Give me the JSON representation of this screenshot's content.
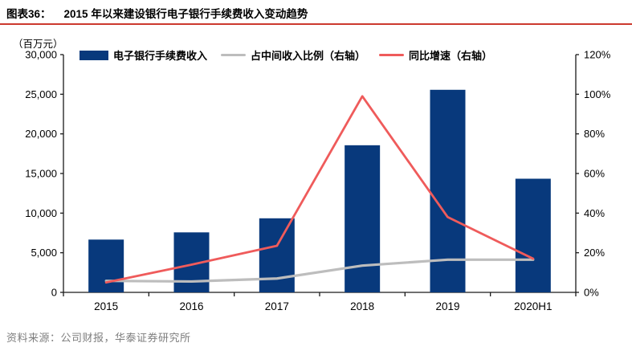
{
  "header": {
    "figure_label": "图表36：",
    "title": "2015 年以来建设银行电子银行手续费收入变动趋势"
  },
  "footer": {
    "source": "资料来源：公司财报，华泰证券研究所"
  },
  "colors": {
    "bar_blue": "#08397C",
    "line_gray": "#BDBDBD",
    "line_red": "#EF5B5B",
    "divider_red": "#CC392E",
    "axis_black": "#1a1a1a",
    "footer_gray": "#7e7e7e"
  },
  "chart_data": {
    "type": "bar",
    "subtype": "bar-line-combo",
    "title": "2015 年以来建设银行电子银行手续费收入变动趋势",
    "unit_label": "（百万元）",
    "categories": [
      "2015",
      "2016",
      "2017",
      "2018",
      "2019",
      "2020H1"
    ],
    "series": [
      {
        "name": "电子银行手续费收入",
        "type": "bar",
        "axis": "left",
        "color": "#08397C",
        "values": [
          6660,
          7570,
          9345,
          18563,
          25561,
          14341
        ]
      },
      {
        "name": "占中间收入比例（右轴）",
        "type": "line",
        "axis": "right",
        "color": "#BDBDBD",
        "values": [
          5.8,
          5.5,
          7.0,
          13.5,
          16.5,
          16.5
        ]
      },
      {
        "name": "同比增速（右轴）",
        "type": "line",
        "axis": "right",
        "color": "#EF5B5B",
        "values": [
          5.0,
          14.0,
          23.5,
          99.0,
          38.0,
          17.0
        ]
      }
    ],
    "left_axis": {
      "min": 0,
      "max": 30000,
      "step": 5000,
      "tick_labels": [
        "0",
        "5,000",
        "10,000",
        "15,000",
        "20,000",
        "25,000",
        "30,000"
      ]
    },
    "right_axis": {
      "min": 0,
      "max": 120,
      "step": 20,
      "tick_labels": [
        "0%",
        "20%",
        "40%",
        "60%",
        "80%",
        "100%",
        "120%"
      ]
    },
    "grid": "off",
    "legend_position": "top"
  }
}
